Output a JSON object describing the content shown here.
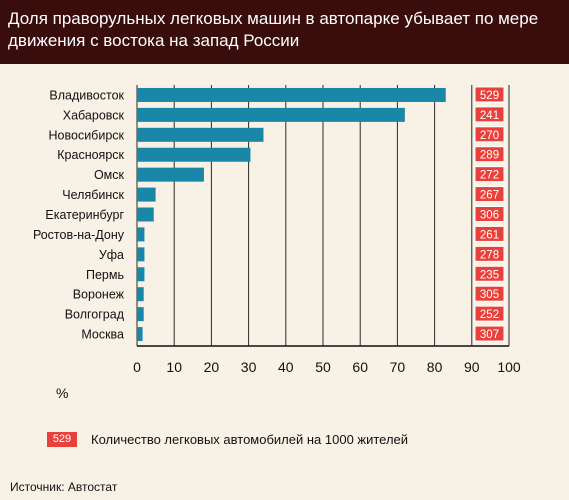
{
  "title": "Доля праворульных легковых машин в автопарке убывает по мере движения с  востока на запад России",
  "legend": {
    "sample_value": "529",
    "text": "Количество легковых автомобилей на 1000 жителей"
  },
  "source": "Источник:  Автостат",
  "colors": {
    "bar": "#1b87a8",
    "badge": "#e8403a",
    "header": "#3a0d0d",
    "background": "#f8f1e6"
  },
  "chart_data": {
    "type": "bar",
    "orientation": "horizontal",
    "categories": [
      "Владивосток",
      "Хабаровск",
      "Новосибирск",
      "Красноярск",
      "Омск",
      "Челябинск",
      "Екатеринбург",
      "Ростов-на-Дону",
      "Уфа",
      "Пермь",
      "Воронеж",
      "Волгоград",
      "Москва"
    ],
    "values": [
      83,
      72,
      34,
      30.5,
      18,
      5,
      4.5,
      2,
      2,
      2,
      1.8,
      1.8,
      1.5
    ],
    "cars_per_1000": [
      "529",
      "241",
      "270",
      "289",
      "272",
      "267",
      "306",
      "261",
      "278",
      "235",
      "305",
      "252",
      "307"
    ],
    "xlabel": "%",
    "xlim": [
      0,
      100
    ],
    "xticks": [
      "0",
      "10",
      "20",
      "30",
      "40",
      "50",
      "60",
      "70",
      "80",
      "90",
      "100"
    ],
    "grid": true
  }
}
